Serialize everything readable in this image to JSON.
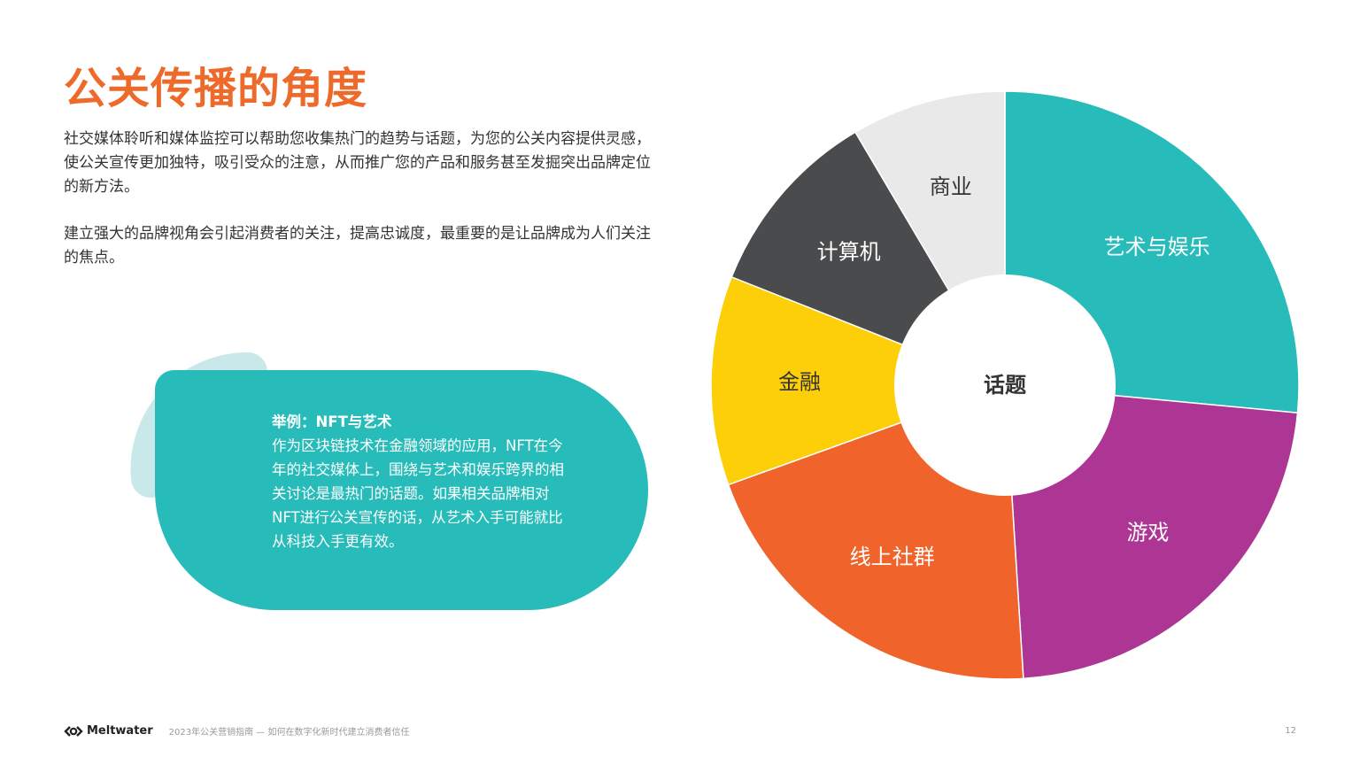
{
  "title": "公关传播的角度",
  "paragraphs": [
    "社交媒体聆听和媒体监控可以帮助您收集热门的趋势与话题，为您的公关内容提供灵感，使公关宣传更加独特，吸引受众的注意，从而推广您的产品和服务甚至发掘突出品牌定位的新方法。",
    "建立强大的品牌视角会引起消费者的关注，提高忠诚度，最重要的是让品牌成为人们关注的焦点。"
  ],
  "callout": {
    "heading": "举例：NFT与艺术",
    "body": "作为区块链技术在金融领域的应用，NFT在今年的社交媒体上，围绕与艺术和娱乐跨界的相关讨论是最热门的话题。如果相关品牌相对NFT进行公关宣传的话，从艺术入手可能就比从科技入手更有效。"
  },
  "chart_data": {
    "type": "pie",
    "center_label": "话题",
    "categories": [
      "艺术与娱乐",
      "游戏",
      "线上社群",
      "金融",
      "计算机",
      "商业"
    ],
    "values": [
      26.5,
      22.5,
      20.5,
      11.5,
      10.5,
      8.5
    ],
    "colors": [
      "#27bcb9",
      "#ad3593",
      "#f0632a",
      "#fccf09",
      "#4a4b4d",
      "#e9e9e9"
    ],
    "label_colors": [
      "#ffffff",
      "#ffffff",
      "#ffffff",
      "#333333",
      "#ffffff",
      "#333333"
    ]
  },
  "footer": {
    "brand": "Meltwater",
    "note": "2023年公关营销指南 — 如何在数字化新时代建立消费者信任",
    "page": "12"
  }
}
